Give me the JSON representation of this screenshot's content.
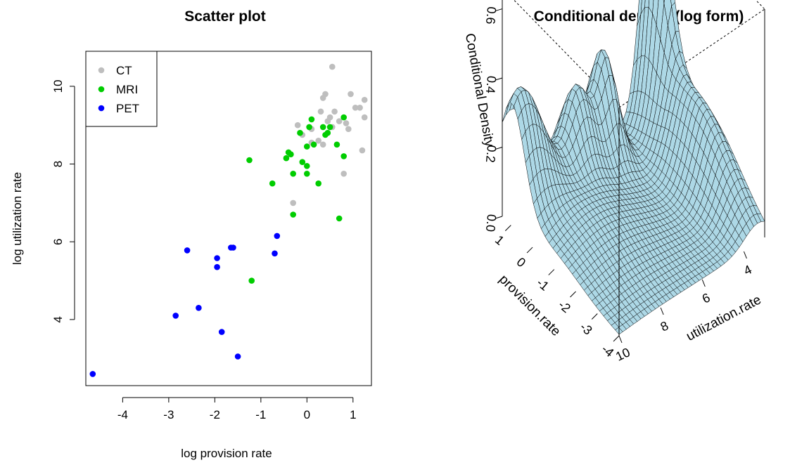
{
  "chart_data": [
    {
      "type": "scatter",
      "title": "Scatter plot",
      "xlabel": "log provision rate",
      "ylabel": "log utilization rate",
      "xlim": [
        -4.8,
        1.4
      ],
      "ylim": [
        2.3,
        10.9
      ],
      "x_ticks": [
        -4,
        -3,
        -2,
        -1,
        0,
        1
      ],
      "y_ticks": [
        4,
        6,
        8,
        10
      ],
      "legend_position": "top-left",
      "series": [
        {
          "name": "CT",
          "color": "#bebebe",
          "points": [
            [
              0.55,
              10.5
            ],
            [
              0.4,
              9.8
            ],
            [
              0.35,
              9.7
            ],
            [
              0.95,
              9.8
            ],
            [
              1.25,
              9.65
            ],
            [
              1.05,
              9.45
            ],
            [
              1.15,
              9.45
            ],
            [
              0.6,
              9.35
            ],
            [
              0.3,
              9.35
            ],
            [
              0.5,
              9.2
            ],
            [
              0.45,
              9.1
            ],
            [
              0.7,
              9.1
            ],
            [
              0.85,
              9.05
            ],
            [
              0.55,
              8.95
            ],
            [
              1.25,
              9.2
            ],
            [
              -0.2,
              9.0
            ],
            [
              0.1,
              8.9
            ],
            [
              0.9,
              8.9
            ],
            [
              -0.1,
              8.75
            ],
            [
              0.25,
              8.6
            ],
            [
              0.35,
              8.5
            ],
            [
              0.1,
              8.55
            ],
            [
              1.2,
              8.35
            ],
            [
              0.8,
              7.75
            ],
            [
              -0.3,
              7.0
            ]
          ]
        },
        {
          "name": "MRI",
          "color": "#00cd00",
          "points": [
            [
              0.1,
              9.15
            ],
            [
              0.8,
              9.2
            ],
            [
              0.05,
              8.95
            ],
            [
              -0.15,
              8.8
            ],
            [
              0.35,
              8.95
            ],
            [
              0.5,
              8.95
            ],
            [
              0.45,
              8.8
            ],
            [
              0.4,
              8.75
            ],
            [
              0.15,
              8.5
            ],
            [
              0.0,
              8.45
            ],
            [
              0.65,
              8.5
            ],
            [
              -0.4,
              8.3
            ],
            [
              -0.35,
              8.25
            ],
            [
              -0.45,
              8.15
            ],
            [
              0.8,
              8.2
            ],
            [
              -1.25,
              8.1
            ],
            [
              -0.1,
              8.05
            ],
            [
              0.0,
              7.95
            ],
            [
              0.0,
              7.75
            ],
            [
              -0.3,
              7.75
            ],
            [
              -0.75,
              7.5
            ],
            [
              0.25,
              7.5
            ],
            [
              -0.3,
              6.7
            ],
            [
              0.7,
              6.6
            ],
            [
              -1.2,
              5.0
            ]
          ]
        },
        {
          "name": "PET",
          "color": "#0000ff",
          "points": [
            [
              -0.65,
              6.15
            ],
            [
              -1.65,
              5.85
            ],
            [
              -1.6,
              5.85
            ],
            [
              -2.6,
              5.78
            ],
            [
              -0.7,
              5.7
            ],
            [
              -1.95,
              5.58
            ],
            [
              -1.95,
              5.35
            ],
            [
              -2.35,
              4.3
            ],
            [
              -2.85,
              4.1
            ],
            [
              -1.85,
              3.68
            ],
            [
              -1.5,
              3.05
            ],
            [
              -4.65,
              2.6
            ]
          ]
        }
      ]
    },
    {
      "type": "surface",
      "title": "Conditional density (log form)",
      "xlabel": "provision.rate",
      "ylabel": "utilization.rate",
      "zlabel": "Conditional Density",
      "x_ticks": [
        1,
        0,
        -1,
        -2,
        -3,
        -4
      ],
      "y_ticks": [
        4,
        6,
        8,
        10
      ],
      "z_ticks": [
        0.0,
        0.2,
        0.4,
        0.6
      ],
      "surface_color": "#add8e6"
    }
  ]
}
